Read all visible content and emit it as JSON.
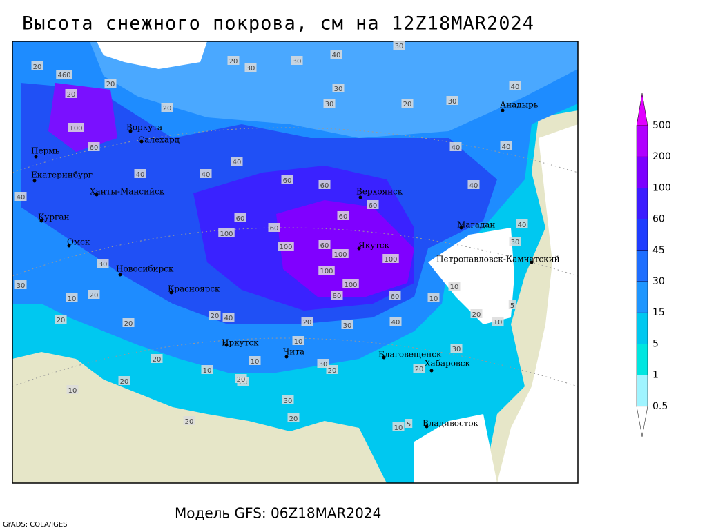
{
  "title": "Высота снежного покрова, см на 12Z18MAR2024",
  "footer": "Модель GFS: 06Z18MAR2024",
  "credit": "GrADS: COLA/IGES",
  "cities": [
    "Воркута",
    "Салехард",
    "Пермь",
    "Екатеринбург",
    "Ханты-Мансийск",
    "Курган",
    "Омск",
    "Новосибирск",
    "Красноярск",
    "Иркутск",
    "Чита",
    "Благовещенск",
    "Хабаровск",
    "Владивосток",
    "Якутск",
    "Верхоянск",
    "Магадан",
    "Петропавловск-Камчатский",
    "Анадырь"
  ],
  "depth_labels": [
    460,
    20,
    20,
    20,
    20,
    20,
    30,
    30,
    40,
    30,
    30,
    30,
    20,
    30,
    40,
    100,
    60,
    40,
    40,
    40,
    60,
    60,
    60,
    60,
    60,
    100,
    60,
    100,
    60,
    100,
    100,
    100,
    100,
    80,
    60,
    40,
    40,
    40,
    40,
    30,
    10,
    5,
    20,
    10,
    10,
    20,
    20,
    20,
    30,
    30,
    20,
    30,
    20,
    20,
    10,
    5,
    20,
    40,
    20,
    30,
    40,
    10,
    30,
    20,
    20,
    30,
    10,
    10,
    20,
    10,
    20,
    20,
    10,
    40
  ],
  "legend": {
    "levels": [
      500,
      200,
      100,
      60,
      45,
      30,
      15,
      5,
      1,
      0.5
    ],
    "colors": [
      "#e000ff",
      "#b000ff",
      "#7c00ff",
      "#3c1cff",
      "#1e3cff",
      "#1e6eff",
      "#1e96ff",
      "#00c8f0",
      "#00e6e0",
      "#a0f4ff",
      "#ffffff"
    ]
  }
}
